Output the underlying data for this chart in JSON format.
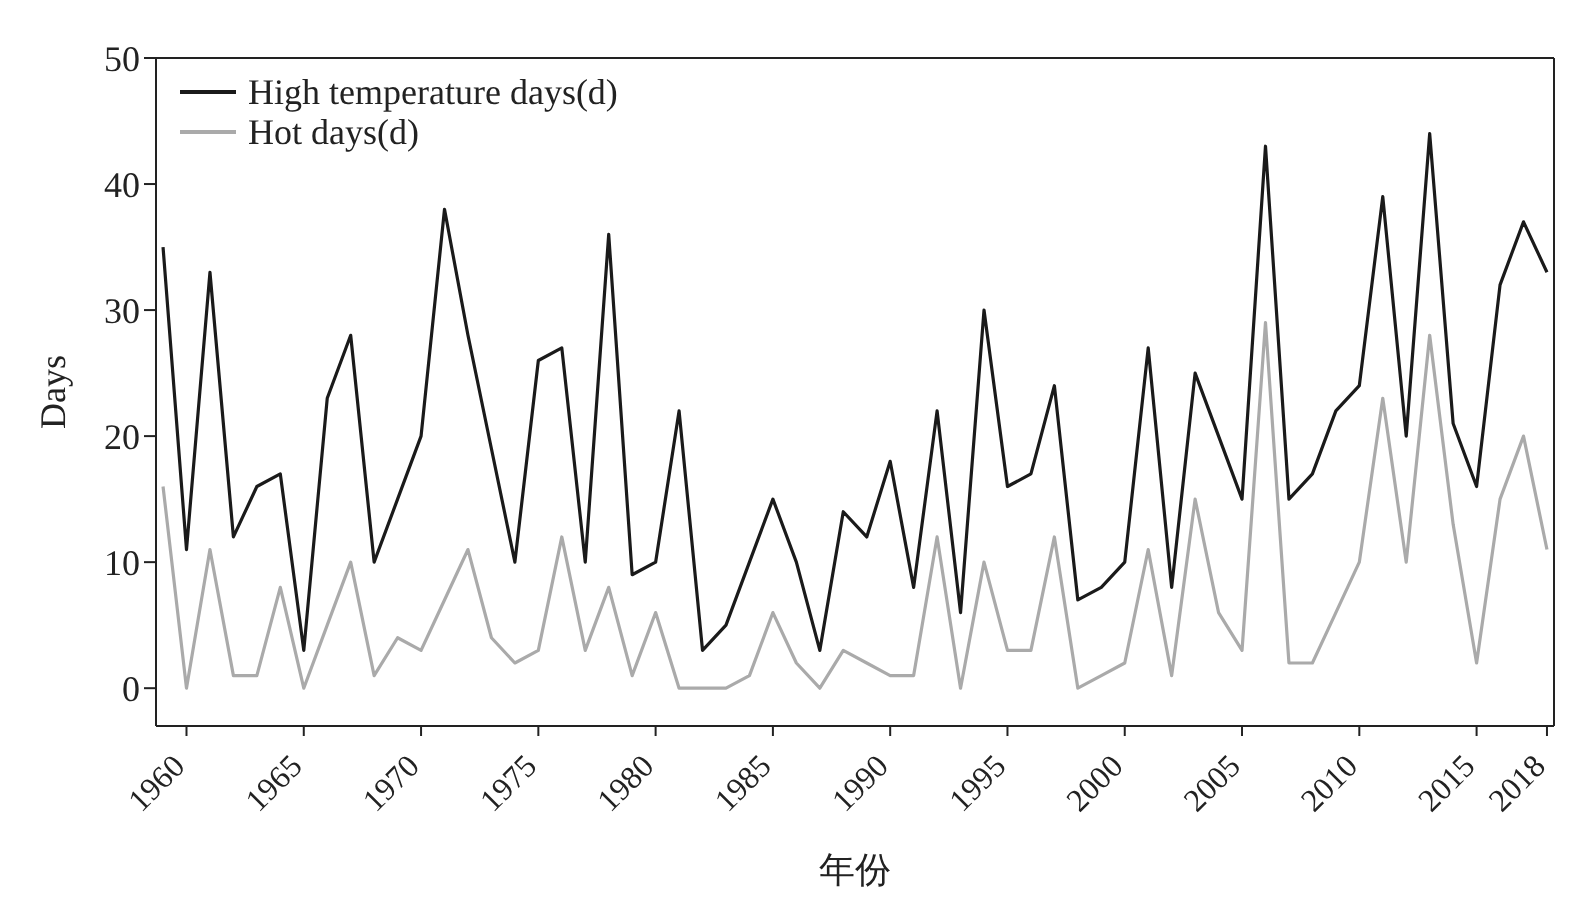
{
  "chart_data": {
    "type": "line",
    "xlabel": "年份",
    "ylabel": "Days",
    "x": [
      1959,
      1960,
      1961,
      1962,
      1963,
      1964,
      1965,
      1966,
      1967,
      1968,
      1969,
      1970,
      1971,
      1972,
      1973,
      1974,
      1975,
      1976,
      1977,
      1978,
      1979,
      1980,
      1981,
      1982,
      1983,
      1984,
      1985,
      1986,
      1987,
      1988,
      1989,
      1990,
      1991,
      1992,
      1993,
      1994,
      1995,
      1996,
      1997,
      1998,
      1999,
      2000,
      2001,
      2002,
      2003,
      2004,
      2005,
      2006,
      2007,
      2008,
      2009,
      2010,
      2011,
      2012,
      2013,
      2014,
      2015,
      2016,
      2017,
      2018
    ],
    "series": [
      {
        "name": "High temperature days(d)",
        "color": "#1a1a1a",
        "values": [
          35,
          11,
          33,
          12,
          16,
          17,
          3,
          23,
          28,
          10,
          15,
          20,
          38,
          28,
          19,
          10,
          26,
          27,
          10,
          36,
          9,
          10,
          22,
          3,
          5,
          10,
          15,
          10,
          3,
          14,
          12,
          18,
          8,
          22,
          6,
          30,
          16,
          17,
          24,
          7,
          8,
          10,
          27,
          8,
          25,
          20,
          15,
          43,
          15,
          17,
          22,
          24,
          39,
          20,
          44,
          21,
          16,
          32,
          37,
          33
        ]
      },
      {
        "name": "Hot days(d)",
        "color": "#aaaaaa",
        "values": [
          16,
          0,
          11,
          1,
          1,
          8,
          0,
          5,
          10,
          1,
          4,
          3,
          7,
          11,
          4,
          2,
          3,
          12,
          3,
          8,
          1,
          6,
          0,
          0,
          0,
          1,
          6,
          2,
          0,
          3,
          2,
          1,
          1,
          12,
          0,
          10,
          3,
          3,
          12,
          0,
          1,
          2,
          11,
          1,
          15,
          6,
          3,
          29,
          2,
          2,
          6,
          10,
          23,
          10,
          28,
          13,
          2,
          15,
          20,
          11
        ]
      }
    ],
    "xlim": [
      1958.7,
      2018.3
    ],
    "xticks": [
      1960,
      1965,
      1970,
      1975,
      1980,
      1985,
      1990,
      1995,
      2000,
      2005,
      2010,
      2015,
      2018
    ],
    "ylim": [
      -3,
      50
    ],
    "yticks": [
      0,
      10,
      20,
      30,
      40,
      50
    ],
    "legend": "top left",
    "marker": "none",
    "line_style": "solid",
    "grid": false
  }
}
